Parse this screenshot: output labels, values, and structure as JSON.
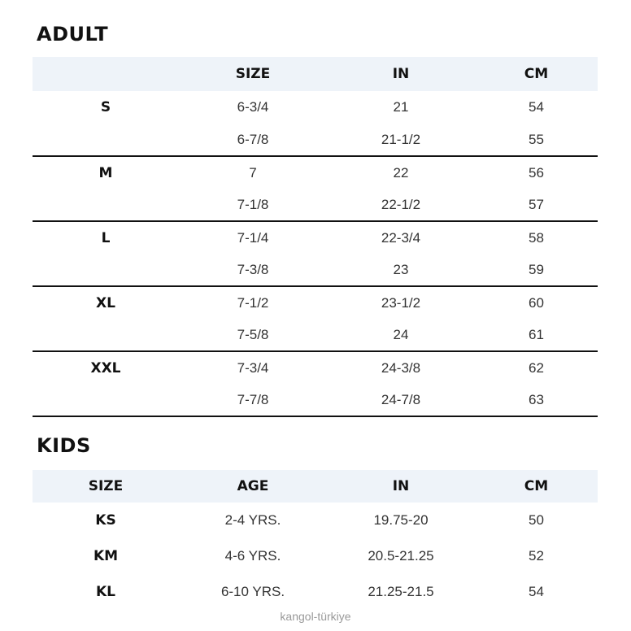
{
  "adult": {
    "title": "ADULT",
    "headers": [
      "",
      "SIZE",
      "IN",
      "CM"
    ],
    "groups": [
      {
        "size": "S",
        "rows": [
          [
            "6-3/4",
            "21",
            "54"
          ],
          [
            "6-7/8",
            "21-1/2",
            "55"
          ]
        ]
      },
      {
        "size": "M",
        "rows": [
          [
            "7",
            "22",
            "56"
          ],
          [
            "7-1/8",
            "22-1/2",
            "57"
          ]
        ]
      },
      {
        "size": "L",
        "rows": [
          [
            "7-1/4",
            "22-3/4",
            "58"
          ],
          [
            "7-3/8",
            "23",
            "59"
          ]
        ]
      },
      {
        "size": "XL",
        "rows": [
          [
            "7-1/2",
            "23-1/2",
            "60"
          ],
          [
            "7-5/8",
            "24",
            "61"
          ]
        ]
      },
      {
        "size": "XXL",
        "rows": [
          [
            "7-3/4",
            "24-3/8",
            "62"
          ],
          [
            "7-7/8",
            "24-7/8",
            "63"
          ]
        ]
      }
    ]
  },
  "kids": {
    "title": "KIDS",
    "headers": [
      "SIZE",
      "AGE",
      "IN",
      "CM"
    ],
    "rows": [
      [
        "KS",
        "2-4 YRS.",
        "19.75-20",
        "50"
      ],
      [
        "KM",
        "4-6 YRS.",
        "20.5-21.25",
        "52"
      ],
      [
        "KL",
        "6-10 YRS.",
        "21.25-21.5",
        "54"
      ]
    ]
  },
  "watermark": "kangol-türkiye",
  "colors": {
    "header_bg": "#eef3f9",
    "rule": "#111111"
  }
}
